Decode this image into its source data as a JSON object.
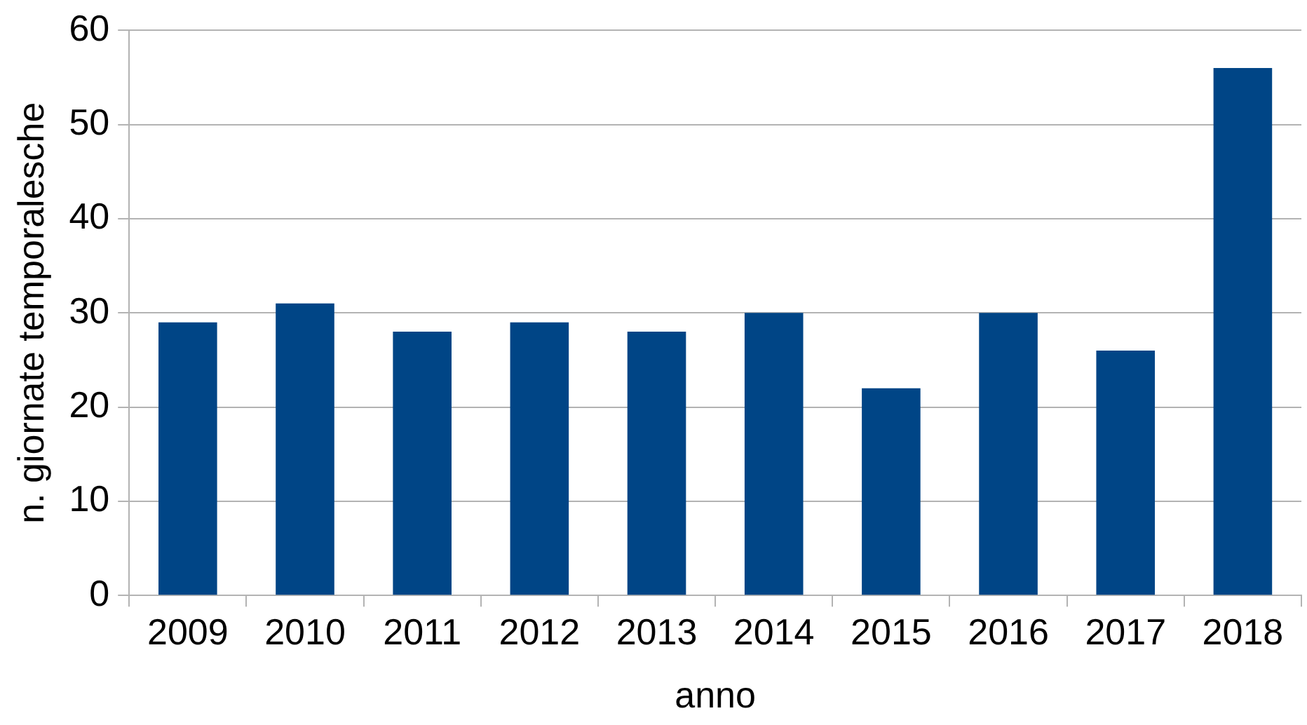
{
  "chart_data": {
    "type": "bar",
    "xlabel": "anno",
    "ylabel": "n. giornate temporalesche",
    "categories": [
      "2009",
      "2010",
      "2011",
      "2012",
      "2013",
      "2014",
      "2015",
      "2016",
      "2017",
      "2018"
    ],
    "values": [
      29,
      31,
      28,
      29,
      28,
      30,
      22,
      30,
      26,
      56
    ],
    "color": "#004586",
    "ylim": [
      0,
      60
    ],
    "yticks": [
      0,
      10,
      20,
      30,
      40,
      50,
      60
    ],
    "grid": "y",
    "legend": false
  }
}
